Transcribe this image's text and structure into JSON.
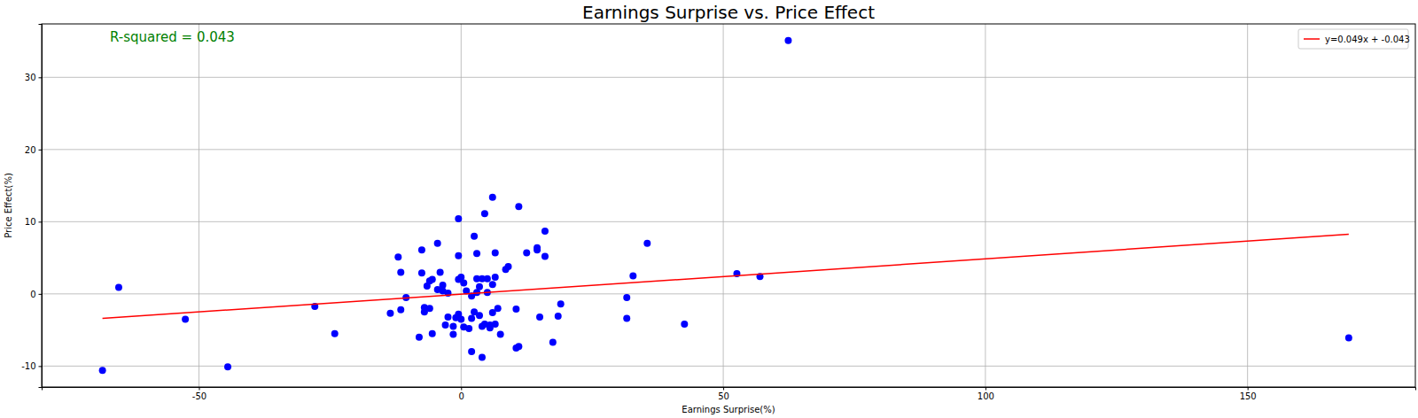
{
  "chart_data": {
    "type": "scatter",
    "title": "Earnings Surprise vs. Price Effect",
    "x_label": "Earnings Surprise(%)",
    "y_label": "Price Effect(%)",
    "annotations": [
      "R-squared = 0.043"
    ],
    "xlim": [
      -80,
      182
    ],
    "ylim": [
      -12.9,
      37.4
    ],
    "xticks": [
      -50,
      0,
      50,
      100,
      150
    ],
    "yticks": [
      -10,
      0,
      10,
      20,
      30
    ],
    "grid": true,
    "legend": "upper right",
    "series": [
      {
        "type": "scatter",
        "color": "#0000ff",
        "marker": "circle",
        "x": [
          62.4,
          169.3,
          -68.4,
          -65.3,
          -52.6,
          -44.5,
          -27.9,
          -24.1,
          31.6,
          31.6,
          32.8,
          35.5,
          42.6,
          52.6,
          57,
          -13.5,
          -12,
          -11.5,
          -11.5,
          -10.5,
          -8,
          -7.5,
          -7.5,
          -7,
          -7,
          -6.5,
          -6,
          -5.5,
          -6,
          -5.5,
          -4.5,
          -4.5,
          -4,
          -3.5,
          -3.5,
          -3,
          -2.5,
          -2.5,
          -1.5,
          -1.5,
          -1,
          -0.5,
          -0.5,
          -0.5,
          -0.5,
          0,
          0,
          0.5,
          0.5,
          1,
          1.5,
          2,
          2,
          2,
          2.5,
          2.5,
          3,
          3,
          3,
          3.5,
          3.5,
          4,
          4,
          4,
          4.5,
          4.5,
          5,
          5,
          5.5,
          5.5,
          6,
          6,
          6,
          6.5,
          6.5,
          6.5,
          7,
          7.5,
          8.5,
          9,
          10.5,
          10.5,
          11,
          11,
          12.5,
          14.5,
          14.5,
          15,
          16,
          16,
          17.5,
          18.5,
          19
        ],
        "values": [
          35.1,
          -6.1,
          -10.6,
          0.9,
          -3.5,
          -10.1,
          -1.75,
          -5.5,
          -0.5,
          -3.4,
          2.5,
          7.0,
          -4.2,
          2.8,
          2.4,
          -2.7,
          5.1,
          3.0,
          -2.2,
          -0.5,
          -6.0,
          6.1,
          2.9,
          -2.5,
          -1.9,
          1.1,
          1.8,
          2.0,
          -2.0,
          -5.5,
          7.0,
          0.6,
          3.0,
          1.2,
          0.4,
          -4.3,
          -3.2,
          0.1,
          -4.5,
          -5.6,
          -3.3,
          10.4,
          5.3,
          2.0,
          -2.8,
          2.3,
          -3.5,
          1.5,
          -4.6,
          0.4,
          -4.8,
          -8.0,
          -0.3,
          -3.4,
          -2.5,
          8.0,
          0.2,
          2.1,
          5.6,
          -3.0,
          1.0,
          -4.5,
          2.1,
          -8.8,
          11.1,
          -4.2,
          2.1,
          0.2,
          -4.7,
          -4.3,
          -2.6,
          13.4,
          1.3,
          5.7,
          2.3,
          -4.2,
          -2.0,
          -5.6,
          3.4,
          3.8,
          -2.1,
          -7.5,
          12.1,
          -7.3,
          5.7,
          6.4,
          6.1,
          -3.2,
          8.7,
          5.2,
          -6.7,
          -3.1,
          -1.4
        ]
      },
      {
        "name": "y=0.049x + -0.043",
        "type": "line",
        "color": "#ff0000",
        "line_style": "solid",
        "x": [
          -68.4,
          169.3
        ],
        "values": [
          -3.4,
          8.25
        ]
      }
    ]
  }
}
